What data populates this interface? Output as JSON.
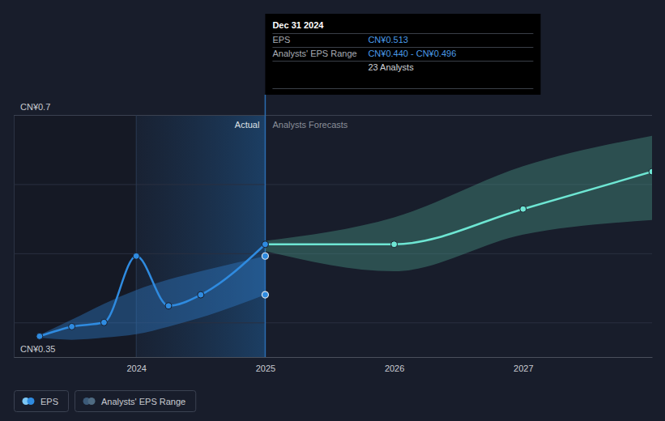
{
  "chart_data": {
    "type": "line",
    "x": [
      2023.25,
      2023.5,
      2023.75,
      2024.0,
      2024.25,
      2024.5,
      2025.0,
      2026.0,
      2027.0,
      2028.0
    ],
    "xlim": [
      2023.05,
      2028.0
    ],
    "xticks": [
      2024,
      2025,
      2026,
      2027
    ],
    "ylim": [
      0.35,
      0.7
    ],
    "yticks": [
      {
        "value": 0.35,
        "label": "CN¥0.35"
      },
      {
        "value": 0.4,
        "label": null
      },
      {
        "value": 0.5,
        "label": null
      },
      {
        "value": 0.6,
        "label": null
      },
      {
        "value": 0.7,
        "label": "CN¥0.7"
      }
    ],
    "grid": true,
    "legend": "bottom-left",
    "series": [
      {
        "name": "EPS",
        "type": "line",
        "color": "#2f8be0",
        "marker": "circle",
        "values": [
          0.38,
          0.394,
          0.4,
          0.496,
          0.424,
          0.44,
          0.513,
          null,
          null,
          null
        ]
      },
      {
        "type": "line",
        "color": "#6ee6d3",
        "marker": "circle",
        "values": [
          null,
          null,
          null,
          null,
          null,
          null,
          0.513,
          0.513,
          0.564,
          0.618
        ]
      },
      {
        "name": "Analysts' EPS Range",
        "type": "area",
        "color": "#2f7fd0",
        "marker": "circle",
        "low": [
          0.378,
          0.375,
          0.378,
          0.383,
          0.394,
          0.407,
          0.44,
          null,
          null,
          null
        ],
        "high": [
          0.382,
          0.404,
          0.427,
          0.447,
          0.462,
          0.474,
          0.496,
          null,
          null,
          null
        ]
      },
      {
        "type": "area",
        "color": "#4a9a8a",
        "low": [
          null,
          null,
          null,
          null,
          null,
          null,
          0.503,
          0.474,
          0.527,
          0.548
        ],
        "high": [
          null,
          null,
          null,
          null,
          null,
          null,
          0.518,
          0.552,
          0.626,
          0.67
        ]
      }
    ],
    "actual_period": [
      2024,
      2025
    ],
    "region_labels": [
      "Actual",
      "Analysts Forecasts"
    ],
    "tooltip": {
      "title": "Dec 31 2024",
      "rows": [
        {
          "label": "EPS",
          "value": "CN¥0.513"
        },
        {
          "label": "Analysts' EPS Range",
          "value": "CN¥0.440 - CN¥0.496"
        },
        {
          "label": null,
          "value": "23 Analysts"
        }
      ]
    }
  }
}
